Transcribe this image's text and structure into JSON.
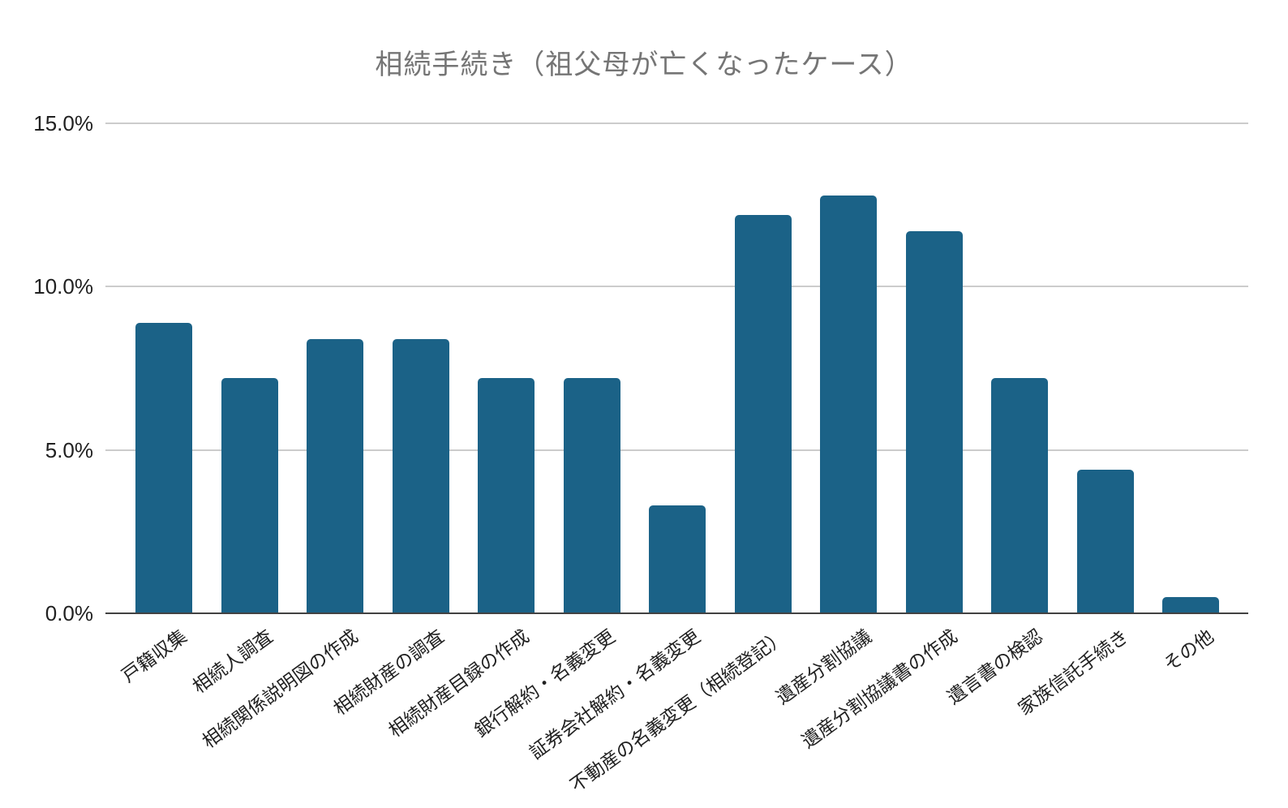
{
  "chart_data": {
    "type": "bar",
    "title": "相続手続き（祖父母が亡くなったケース）",
    "categories": [
      "戸籍収集",
      "相続人調査",
      "相続関係説明図の作成",
      "相続財産の調査",
      "相続財産目録の作成",
      "銀行解約・名義変更",
      "証券会社解約・名義変更",
      "不動産の名義変更（相続登記）",
      "遺産分割協議",
      "遺産分割協議書の作成",
      "遺言書の検認",
      "家族信託手続き",
      "その他"
    ],
    "values": [
      8.9,
      7.2,
      8.4,
      8.4,
      7.2,
      7.2,
      3.3,
      12.2,
      12.8,
      11.7,
      7.2,
      4.4,
      0.5
    ],
    "unit": "%",
    "xlabel": "",
    "ylabel": "",
    "ylim": [
      0,
      15
    ],
    "yticks": [
      {
        "value": 0,
        "label": "0.0%"
      },
      {
        "value": 5,
        "label": "5.0%"
      },
      {
        "value": 10,
        "label": "10.0%"
      },
      {
        "value": 15,
        "label": "15.0%"
      }
    ],
    "grid": true,
    "legend_position": "none",
    "x_labels_rotated": true,
    "colors": {
      "bar": "#1b6287",
      "title": "#757575",
      "tick_label": "#212121",
      "gridline": "#cccccc",
      "axis_line": "#424242",
      "background": "#ffffff"
    }
  }
}
